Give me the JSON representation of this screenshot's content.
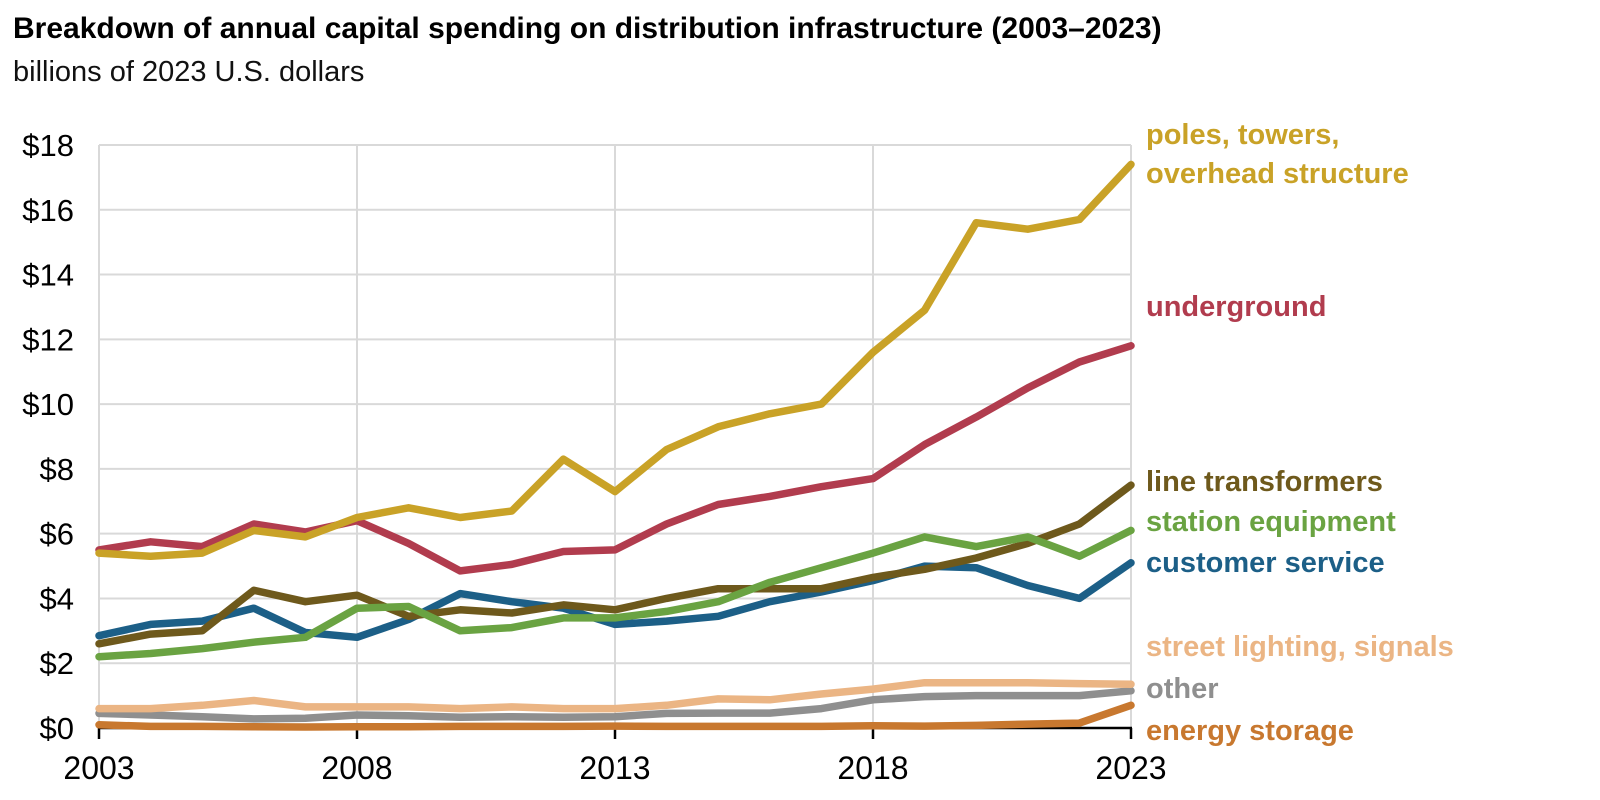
{
  "title": "Breakdown of annual capital spending on distribution infrastructure (2003–2023)",
  "subtitle": "billions of 2023 U.S. dollars",
  "colors": {
    "grid": "#d9d9d9",
    "axis": "#000000",
    "tick_text": "#000000"
  },
  "chart_data": {
    "type": "line",
    "title": "Breakdown of annual capital spending on distribution infrastructure (2003–2023)",
    "subtitle": "billions of 2023 U.S. dollars",
    "xlabel": "",
    "ylabel": "billions of 2023 U.S. dollars",
    "x": [
      2003,
      2004,
      2005,
      2006,
      2007,
      2008,
      2009,
      2010,
      2011,
      2012,
      2013,
      2014,
      2015,
      2016,
      2017,
      2018,
      2019,
      2020,
      2021,
      2022,
      2023
    ],
    "x_ticks": [
      2003,
      2008,
      2013,
      2018,
      2023
    ],
    "x_tick_labels": [
      "2003",
      "2008",
      "2013",
      "2018",
      "2023"
    ],
    "ylim": [
      0,
      18
    ],
    "y_ticks": [
      0,
      2,
      4,
      6,
      8,
      10,
      12,
      14,
      16,
      18
    ],
    "y_tick_labels": [
      "$0",
      "$2",
      "$4",
      "$6",
      "$8",
      "$10",
      "$12",
      "$14",
      "$16",
      "$18"
    ],
    "grid": true,
    "legend_position": "right",
    "series": [
      {
        "name": "poles, towers, overhead structure",
        "legend_lines": [
          "poles, towers,",
          "overhead structure"
        ],
        "color": "#C9A227",
        "values": [
          5.4,
          5.3,
          5.4,
          6.1,
          5.9,
          6.5,
          6.8,
          6.5,
          6.7,
          8.3,
          7.3,
          8.6,
          9.3,
          9.7,
          10.0,
          11.6,
          12.9,
          15.6,
          15.4,
          15.7,
          17.4
        ]
      },
      {
        "name": "underground",
        "legend_lines": [
          "underground"
        ],
        "color": "#B13C4E",
        "values": [
          5.5,
          5.75,
          5.6,
          6.3,
          6.05,
          6.4,
          5.7,
          4.85,
          5.05,
          5.45,
          5.5,
          6.3,
          6.9,
          7.15,
          7.45,
          7.7,
          8.75,
          9.6,
          10.5,
          11.3,
          11.8
        ]
      },
      {
        "name": "line transformers",
        "legend_lines": [
          "line transformers"
        ],
        "color": "#6E591C",
        "values": [
          2.6,
          2.9,
          3.0,
          4.25,
          3.9,
          4.1,
          3.45,
          3.65,
          3.55,
          3.8,
          3.65,
          4.0,
          4.3,
          4.3,
          4.3,
          4.65,
          4.9,
          5.25,
          5.7,
          6.3,
          7.5
        ]
      },
      {
        "name": "station equipment",
        "legend_lines": [
          "station equipment"
        ],
        "color": "#6AA342",
        "values": [
          2.2,
          2.3,
          2.45,
          2.65,
          2.8,
          3.7,
          3.75,
          3.0,
          3.1,
          3.4,
          3.4,
          3.6,
          3.9,
          4.5,
          4.95,
          5.4,
          5.9,
          5.6,
          5.9,
          5.3,
          6.1
        ]
      },
      {
        "name": "customer service",
        "legend_lines": [
          "customer service"
        ],
        "color": "#1C5F87",
        "values": [
          2.85,
          3.2,
          3.3,
          3.7,
          2.95,
          2.8,
          3.35,
          4.15,
          3.9,
          3.7,
          3.2,
          3.3,
          3.45,
          3.9,
          4.2,
          4.55,
          5.0,
          4.95,
          4.4,
          4.0,
          5.1
        ]
      },
      {
        "name": "street lighting, signals",
        "legend_lines": [
          "street lighting, signals"
        ],
        "color": "#EBB584",
        "values": [
          0.6,
          0.6,
          0.7,
          0.85,
          0.65,
          0.65,
          0.65,
          0.6,
          0.65,
          0.6,
          0.6,
          0.7,
          0.9,
          0.87,
          1.05,
          1.2,
          1.4,
          1.4,
          1.4,
          1.37,
          1.35
        ]
      },
      {
        "name": "other",
        "legend_lines": [
          "other"
        ],
        "color": "#8F8F8F",
        "values": [
          0.45,
          0.4,
          0.35,
          0.28,
          0.3,
          0.4,
          0.38,
          0.33,
          0.35,
          0.33,
          0.35,
          0.45,
          0.46,
          0.46,
          0.6,
          0.87,
          0.97,
          1.0,
          1.0,
          1.0,
          1.15
        ]
      },
      {
        "name": "energy storage",
        "legend_lines": [
          "energy storage"
        ],
        "color": "#C8782F",
        "values": [
          0.1,
          0.05,
          0.05,
          0.04,
          0.03,
          0.04,
          0.04,
          0.05,
          0.05,
          0.05,
          0.06,
          0.05,
          0.05,
          0.05,
          0.05,
          0.07,
          0.06,
          0.08,
          0.12,
          0.15,
          0.7
        ]
      }
    ]
  }
}
